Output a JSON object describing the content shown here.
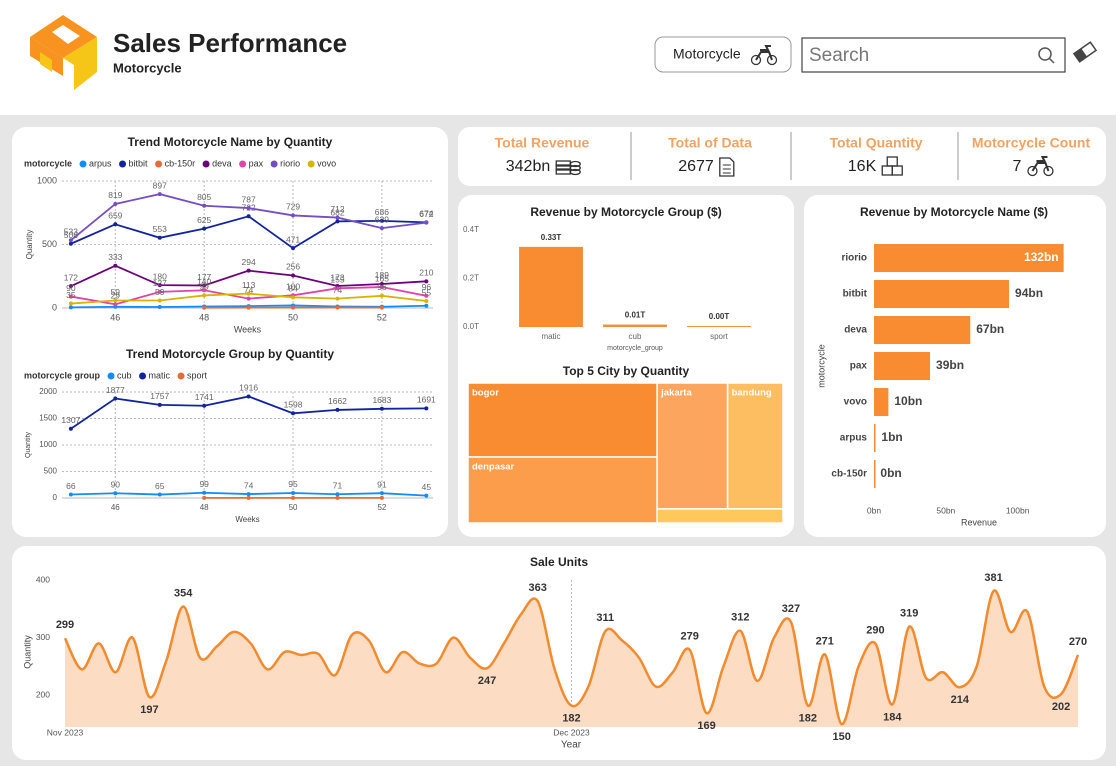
{
  "header": {
    "title": "Sales Performance",
    "subtitle": "Motorcycle",
    "filter": "Motorcycle",
    "search_placeholder": "Search"
  },
  "kpis": [
    {
      "label": "Total Revenue",
      "value": "342bn",
      "icon": "money"
    },
    {
      "label": "Total of Data",
      "value": "2677",
      "icon": "document"
    },
    {
      "label": "Total Quantity",
      "value": "16K",
      "icon": "boxes"
    },
    {
      "label": "Motorcycle Count",
      "value": "7",
      "icon": "motorcycle"
    }
  ],
  "chart_data": [
    {
      "type": "line",
      "title": "Trend Motorcycle Name by Quantity",
      "legend_title": "motorcycle",
      "x": [
        45,
        46,
        47,
        48,
        49,
        50,
        51,
        52,
        53
      ],
      "xlim": [
        44.8,
        53.15
      ],
      "xticks": [
        46,
        48,
        50,
        52
      ],
      "ylim": [
        0,
        1000
      ],
      "yticks": [
        0,
        500,
        1000
      ],
      "xlabel": "Weeks",
      "ylabel": "Quantity",
      "grid": true,
      "series": [
        {
          "name": "arpus",
          "color": "#118DFF",
          "data_labels": false,
          "values": [
            5,
            10,
            8,
            12,
            15,
            20,
            12,
            10,
            18
          ]
        },
        {
          "name": "bitbit",
          "color": "#12239E",
          "data_labels": true,
          "values": [
            506,
            659,
            553,
            625,
            722,
            471,
            682,
            686,
            674
          ]
        },
        {
          "name": "cb-150r",
          "color": "#E66C37",
          "data_labels": false,
          "values": [
            null,
            null,
            null,
            2,
            3,
            3,
            4,
            3,
            null
          ]
        },
        {
          "name": "deva",
          "color": "#6B007B",
          "data_labels": true,
          "values": [
            172,
            333,
            180,
            177,
            294,
            256,
            173,
            189,
            210
          ]
        },
        {
          "name": "pax",
          "color": "#E044A7",
          "data_labels": true,
          "values": [
            90,
            29,
            127,
            140,
            74,
            100,
            155,
            165,
            96
          ]
        },
        {
          "name": "riorio",
          "color": "#744EC2",
          "data_labels": true,
          "values": [
            533,
            819,
            897,
            805,
            787,
            729,
            712,
            629,
            672
          ]
        },
        {
          "name": "vovo",
          "color": "#D9B300",
          "data_labels": true,
          "values": [
            35,
            59,
            59,
            99,
            113,
            84,
            74,
            96,
            55
          ]
        }
      ]
    },
    {
      "type": "line",
      "title": "Trend Motorcycle Group by Quantity",
      "legend_title": "motorcycle group",
      "x": [
        45,
        46,
        47,
        48,
        49,
        50,
        51,
        52,
        53
      ],
      "xlim": [
        44.8,
        53.15
      ],
      "xticks": [
        46,
        48,
        50,
        52
      ],
      "ylim": [
        0,
        2000
      ],
      "yticks": [
        0,
        500,
        1000,
        1500,
        2000
      ],
      "xlabel": "Weeks",
      "ylabel": "Quantity",
      "grid": true,
      "series": [
        {
          "name": "cub",
          "color": "#118DFF",
          "data_labels": true,
          "values": [
            66,
            90,
            65,
            99,
            74,
            95,
            71,
            91,
            45
          ]
        },
        {
          "name": "matic",
          "color": "#12239E",
          "data_labels": true,
          "values": [
            1307,
            1877,
            1757,
            1741,
            1916,
            1598,
            1662,
            1683,
            1691
          ]
        },
        {
          "name": "sport",
          "color": "#E66C37",
          "data_labels": false,
          "values": [
            null,
            null,
            null,
            2,
            2,
            3,
            3,
            3,
            null
          ]
        }
      ]
    },
    {
      "type": "bar",
      "title": "Revenue by Motorcycle Group ($)",
      "categories": [
        "matic",
        "cub",
        "sport"
      ],
      "values": [
        0.33,
        0.01,
        0.004
      ],
      "value_labels": [
        "0.33T",
        "0.01T",
        "0.00T"
      ],
      "color": "#F98B30",
      "ylim": [
        0,
        0.42
      ],
      "yticks": [
        {
          "value": 0,
          "label": "0.0T"
        },
        {
          "value": 0.2,
          "label": "0.2T"
        },
        {
          "value": 0.4,
          "label": "0.4T"
        }
      ],
      "xlabel": "motorcycle_group"
    },
    {
      "type": "treemap",
      "title": "Top 5 City by Quantity",
      "categories": [
        "bogor",
        "denpasar",
        "jakarta",
        "bandung",
        null
      ],
      "values": [
        3478,
        3102,
        2205,
        1733,
        441
      ],
      "colors": [
        "#F98B30",
        "#FB9D4A",
        "#FCA55E",
        "#FDBE62",
        "#FFC85A"
      ]
    },
    {
      "type": "hbar",
      "title": "Revenue by Motorcycle Name ($)",
      "categories": [
        "riorio",
        "bitbit",
        "deva",
        "pax",
        "vovo",
        "arpus",
        "cb-150r"
      ],
      "values": [
        132,
        94,
        67,
        39,
        10,
        1,
        0.3
      ],
      "value_labels": [
        "132bn",
        "94bn",
        "67bn",
        "39bn",
        "10bn",
        "1bn",
        "0bn"
      ],
      "color": "#F98B30",
      "xlim": [
        0,
        142
      ],
      "xticks": [
        {
          "value": 0,
          "label": "0bn"
        },
        {
          "value": 50,
          "label": "50bn"
        },
        {
          "value": 100,
          "label": "100bn"
        }
      ],
      "xlabel": "Revenue",
      "ylabel": "motorcycle"
    },
    {
      "type": "area",
      "title": "Sale Units",
      "categories": [
        "Nov 2023",
        null,
        null,
        null,
        null,
        null,
        null,
        null,
        null,
        null,
        null,
        null,
        null,
        null,
        null,
        null,
        null,
        null,
        null,
        null,
        null,
        null,
        null,
        null,
        null,
        null,
        null,
        null,
        null,
        null,
        "Dec 2023",
        null,
        null,
        null,
        null,
        null,
        null,
        null,
        null,
        null,
        null,
        null,
        null,
        null,
        null,
        null,
        null,
        null,
        null,
        null,
        null,
        null,
        null,
        null,
        null,
        null,
        null,
        null,
        null,
        null,
        null
      ],
      "values": [
        299,
        245,
        290,
        240,
        300,
        197,
        260,
        354,
        265,
        285,
        310,
        290,
        245,
        275,
        270,
        272,
        235,
        305,
        295,
        240,
        275,
        255,
        255,
        300,
        265,
        247,
        290,
        340,
        363,
        245,
        182,
        215,
        311,
        295,
        265,
        215,
        240,
        279,
        169,
        250,
        312,
        225,
        300,
        327,
        182,
        271,
        150,
        250,
        290,
        184,
        319,
        230,
        240,
        214,
        250,
        381,
        310,
        345,
        215,
        202,
        270
      ],
      "value_labels": [
        "299",
        null,
        null,
        null,
        null,
        "197",
        null,
        "354",
        null,
        null,
        null,
        null,
        null,
        null,
        null,
        null,
        null,
        null,
        null,
        null,
        null,
        null,
        null,
        null,
        null,
        "247",
        null,
        null,
        "363",
        null,
        "182",
        null,
        "311",
        null,
        null,
        null,
        null,
        "279",
        "169",
        null,
        "312",
        null,
        null,
        "327",
        "182",
        "271",
        "150",
        null,
        "290",
        "184",
        "319",
        null,
        null,
        "214",
        null,
        "381",
        null,
        null,
        null,
        "202",
        "270"
      ],
      "color": "#F28A2E",
      "fill": "#FDDCC4",
      "ylim": [
        145,
        400
      ],
      "yticks": [
        200,
        300,
        400
      ],
      "xlabel": "Year",
      "ylabel": "Quantity",
      "grid": true
    }
  ]
}
